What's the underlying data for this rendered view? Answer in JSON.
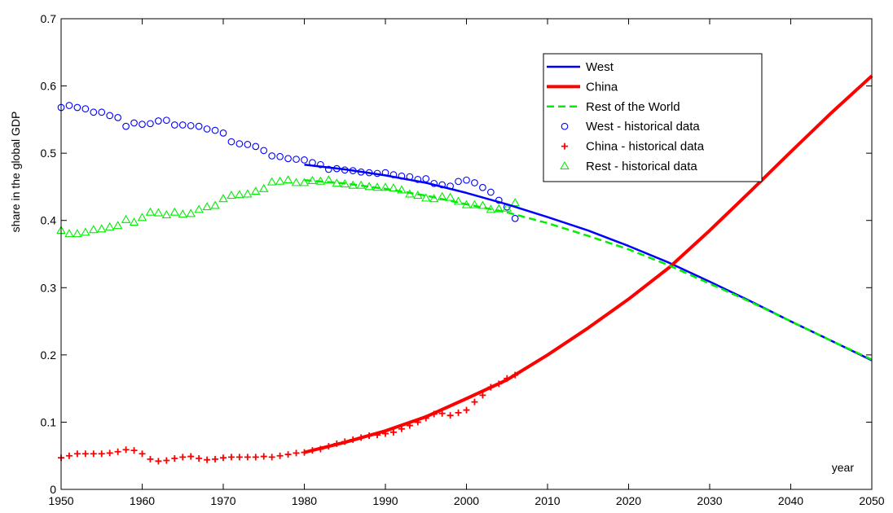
{
  "chart_data": {
    "type": "line",
    "xlabel": "year",
    "ylabel": "share in the global GDP",
    "xlim": [
      1950,
      2050
    ],
    "ylim": [
      0,
      0.7
    ],
    "xticks": [
      1950,
      1960,
      1970,
      1980,
      1990,
      2000,
      2010,
      2020,
      2030,
      2040,
      2050
    ],
    "yticks": [
      0,
      0.1,
      0.2,
      0.3,
      0.4,
      0.5,
      0.6,
      0.7
    ],
    "ytick_labels": [
      "0",
      "0.1",
      "0.2",
      "0.3",
      "0.4",
      "0.5",
      "0.6",
      "0.7"
    ],
    "grid": false,
    "legend_position": "top-right",
    "series": [
      {
        "name": "West",
        "kind": "line",
        "color": "#0000ff",
        "style": "solid",
        "x": [
          1980,
          1985,
          1990,
          1995,
          2000,
          2005,
          2010,
          2015,
          2020,
          2025,
          2030,
          2035,
          2040,
          2045,
          2050
        ],
        "y": [
          0.483,
          0.476,
          0.467,
          0.456,
          0.441,
          0.424,
          0.405,
          0.385,
          0.362,
          0.337,
          0.309,
          0.28,
          0.25,
          0.221,
          0.192
        ]
      },
      {
        "name": "China",
        "kind": "line",
        "color": "#ff0000",
        "style": "solid",
        "x": [
          1980,
          1985,
          1990,
          1995,
          2000,
          2005,
          2010,
          2015,
          2020,
          2025,
          2030,
          2035,
          2040,
          2045,
          2050
        ],
        "y": [
          0.055,
          0.07,
          0.087,
          0.108,
          0.135,
          0.163,
          0.2,
          0.24,
          0.283,
          0.33,
          0.385,
          0.443,
          0.502,
          0.56,
          0.615
        ]
      },
      {
        "name": "Rest of the World",
        "kind": "line",
        "color": "#00ee00",
        "style": "dashed",
        "x": [
          1980,
          1985,
          1990,
          1995,
          2000,
          2005,
          2010,
          2015,
          2020,
          2025,
          2030,
          2035,
          2040,
          2045,
          2050
        ],
        "y": [
          0.46,
          0.455,
          0.447,
          0.437,
          0.424,
          0.412,
          0.396,
          0.377,
          0.357,
          0.333,
          0.306,
          0.279,
          0.25,
          0.221,
          0.193
        ]
      },
      {
        "name": "West - historical data",
        "kind": "marker",
        "marker": "circle",
        "color": "#0000ff",
        "x": [
          1950,
          1951,
          1952,
          1953,
          1954,
          1955,
          1956,
          1957,
          1958,
          1959,
          1960,
          1961,
          1962,
          1963,
          1964,
          1965,
          1966,
          1967,
          1968,
          1969,
          1970,
          1971,
          1972,
          1973,
          1974,
          1975,
          1976,
          1977,
          1978,
          1979,
          1980,
          1981,
          1982,
          1983,
          1984,
          1985,
          1986,
          1987,
          1988,
          1989,
          1990,
          1991,
          1992,
          1993,
          1994,
          1995,
          1996,
          1997,
          1998,
          1999,
          2000,
          2001,
          2002,
          2003,
          2004,
          2005,
          2006
        ],
        "y": [
          0.568,
          0.571,
          0.568,
          0.566,
          0.561,
          0.561,
          0.556,
          0.553,
          0.54,
          0.545,
          0.543,
          0.544,
          0.548,
          0.549,
          0.542,
          0.542,
          0.541,
          0.54,
          0.536,
          0.534,
          0.53,
          0.517,
          0.514,
          0.513,
          0.51,
          0.504,
          0.496,
          0.495,
          0.492,
          0.491,
          0.49,
          0.486,
          0.483,
          0.476,
          0.477,
          0.475,
          0.474,
          0.472,
          0.471,
          0.47,
          0.471,
          0.468,
          0.466,
          0.465,
          0.461,
          0.462,
          0.455,
          0.453,
          0.451,
          0.458,
          0.46,
          0.456,
          0.449,
          0.442,
          0.43,
          0.42,
          0.403
        ]
      },
      {
        "name": "China - historical data",
        "kind": "marker",
        "marker": "plus",
        "color": "#ff0000",
        "x": [
          1950,
          1951,
          1952,
          1953,
          1954,
          1955,
          1956,
          1957,
          1958,
          1959,
          1960,
          1961,
          1962,
          1963,
          1964,
          1965,
          1966,
          1967,
          1968,
          1969,
          1970,
          1971,
          1972,
          1973,
          1974,
          1975,
          1976,
          1977,
          1978,
          1979,
          1980,
          1981,
          1982,
          1983,
          1984,
          1985,
          1986,
          1987,
          1988,
          1989,
          1990,
          1991,
          1992,
          1993,
          1994,
          1995,
          1996,
          1997,
          1998,
          1999,
          2000,
          2001,
          2002,
          2003,
          2004,
          2005,
          2006
        ],
        "y": [
          0.047,
          0.05,
          0.053,
          0.053,
          0.053,
          0.053,
          0.054,
          0.056,
          0.059,
          0.058,
          0.053,
          0.045,
          0.042,
          0.043,
          0.046,
          0.048,
          0.049,
          0.046,
          0.044,
          0.045,
          0.047,
          0.048,
          0.048,
          0.048,
          0.048,
          0.049,
          0.048,
          0.05,
          0.052,
          0.054,
          0.055,
          0.058,
          0.06,
          0.064,
          0.068,
          0.071,
          0.074,
          0.077,
          0.08,
          0.081,
          0.083,
          0.085,
          0.09,
          0.095,
          0.1,
          0.106,
          0.112,
          0.113,
          0.11,
          0.114,
          0.118,
          0.13,
          0.14,
          0.152,
          0.157,
          0.165,
          0.17
        ]
      },
      {
        "name": "Rest - historical data",
        "kind": "marker",
        "marker": "triangle",
        "color": "#00ee00",
        "x": [
          1950,
          1951,
          1952,
          1953,
          1954,
          1955,
          1956,
          1957,
          1958,
          1959,
          1960,
          1961,
          1962,
          1963,
          1964,
          1965,
          1966,
          1967,
          1968,
          1969,
          1970,
          1971,
          1972,
          1973,
          1974,
          1975,
          1976,
          1977,
          1978,
          1979,
          1980,
          1981,
          1982,
          1983,
          1984,
          1985,
          1986,
          1987,
          1988,
          1989,
          1990,
          1991,
          1992,
          1993,
          1994,
          1995,
          1996,
          1997,
          1998,
          1999,
          2000,
          2001,
          2002,
          2003,
          2004,
          2005,
          2006
        ],
        "y": [
          0.385,
          0.38,
          0.38,
          0.382,
          0.386,
          0.387,
          0.39,
          0.392,
          0.401,
          0.397,
          0.404,
          0.412,
          0.411,
          0.408,
          0.412,
          0.409,
          0.41,
          0.416,
          0.42,
          0.422,
          0.432,
          0.437,
          0.438,
          0.439,
          0.443,
          0.447,
          0.457,
          0.458,
          0.46,
          0.456,
          0.456,
          0.459,
          0.458,
          0.46,
          0.455,
          0.454,
          0.452,
          0.452,
          0.45,
          0.449,
          0.449,
          0.448,
          0.445,
          0.439,
          0.437,
          0.433,
          0.432,
          0.435,
          0.434,
          0.428,
          0.423,
          0.423,
          0.422,
          0.416,
          0.417,
          0.418,
          0.426
        ]
      }
    ]
  }
}
